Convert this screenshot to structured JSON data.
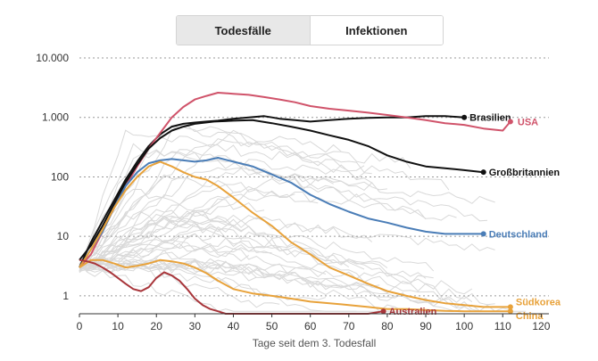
{
  "toggle": {
    "deaths_label": "Todesfälle",
    "infections_label": "Infektionen"
  },
  "chart_data": {
    "type": "line",
    "title": "",
    "xlabel": "Tage seit dem 3. Todesfall",
    "ylabel": "",
    "yscale": "log",
    "xlim": [
      0,
      122
    ],
    "ylim": [
      0.5,
      10000
    ],
    "x_ticks": [
      0,
      10,
      20,
      30,
      40,
      50,
      60,
      70,
      80,
      90,
      100,
      110,
      120
    ],
    "y_ticks": [
      {
        "value": 1,
        "label": "1"
      },
      {
        "value": 10,
        "label": "10"
      },
      {
        "value": 100,
        "label": "100"
      },
      {
        "value": 1000,
        "label": "1.000"
      },
      {
        "value": 10000,
        "label": "10.000"
      }
    ],
    "series": [
      {
        "name": "Brasilien",
        "color": "#111111",
        "x": [
          0,
          3,
          6,
          9,
          12,
          15,
          18,
          21,
          24,
          27,
          30,
          33,
          36,
          40,
          44,
          48,
          50,
          52,
          56,
          60,
          65,
          70,
          75,
          80,
          85,
          90,
          95,
          100
        ],
        "y": [
          3,
          8,
          18,
          40,
          90,
          180,
          330,
          520,
          700,
          780,
          820,
          850,
          880,
          950,
          1000,
          1050,
          1000,
          950,
          900,
          850,
          900,
          950,
          980,
          1000,
          1000,
          1050,
          1050,
          1000
        ],
        "label_at_end": true
      },
      {
        "name": "USA",
        "color": "#d0536a",
        "x": [
          0,
          3,
          6,
          9,
          12,
          15,
          18,
          21,
          24,
          27,
          30,
          33,
          36,
          40,
          44,
          48,
          52,
          56,
          60,
          65,
          70,
          75,
          80,
          85,
          90,
          95,
          100,
          105,
          110,
          112
        ],
        "y": [
          3,
          5,
          12,
          30,
          70,
          150,
          300,
          550,
          1000,
          1500,
          2000,
          2300,
          2600,
          2500,
          2400,
          2200,
          2000,
          1800,
          1550,
          1400,
          1300,
          1200,
          1100,
          1000,
          900,
          800,
          750,
          650,
          600,
          850
        ],
        "label_at_end": true
      },
      {
        "name": "Großbritannien",
        "color": "#111111",
        "x": [
          0,
          3,
          6,
          9,
          12,
          15,
          18,
          21,
          24,
          27,
          30,
          35,
          40,
          45,
          50,
          55,
          60,
          65,
          70,
          75,
          80,
          85,
          90,
          95,
          100,
          105
        ],
        "y": [
          4,
          7,
          15,
          35,
          80,
          160,
          300,
          450,
          600,
          700,
          780,
          850,
          880,
          900,
          800,
          700,
          600,
          500,
          420,
          330,
          230,
          180,
          150,
          140,
          130,
          120
        ],
        "label_at_end": true
      },
      {
        "name": "Deutschland",
        "color": "#4a7db7",
        "x": [
          0,
          3,
          6,
          9,
          12,
          15,
          18,
          21,
          24,
          27,
          30,
          33,
          36,
          40,
          45,
          50,
          55,
          60,
          65,
          70,
          75,
          80,
          85,
          90,
          95,
          100,
          105
        ],
        "y": [
          3,
          6,
          12,
          30,
          70,
          120,
          170,
          190,
          200,
          190,
          180,
          190,
          210,
          180,
          150,
          110,
          80,
          50,
          35,
          26,
          20,
          17,
          14,
          12,
          11,
          11,
          11
        ],
        "label_at_end": true
      },
      {
        "name": "Südkorea",
        "color": "#e8a23a",
        "x": [
          0,
          3,
          6,
          9,
          12,
          15,
          18,
          21,
          24,
          27,
          30,
          33,
          36,
          40,
          45,
          50,
          55,
          60,
          65,
          70,
          75,
          80,
          85,
          90,
          95,
          100,
          105,
          110,
          112
        ],
        "y": [
          3,
          6,
          13,
          30,
          60,
          100,
          150,
          180,
          150,
          120,
          100,
          90,
          70,
          45,
          25,
          15,
          8,
          5,
          3,
          2.2,
          1.6,
          1.2,
          1,
          0.85,
          0.75,
          0.7,
          0.65,
          0.65,
          0.65
        ],
        "label_at_end": true
      },
      {
        "name": "China",
        "color": "#e8a23a",
        "x": [
          0,
          3,
          6,
          9,
          12,
          15,
          18,
          21,
          24,
          27,
          30,
          33,
          36,
          40,
          45,
          50,
          55,
          60,
          65,
          70,
          75,
          80,
          85,
          90,
          95,
          100,
          105,
          110,
          112
        ],
        "y": [
          3,
          4,
          4,
          3.5,
          3,
          3.2,
          3.5,
          4,
          3.8,
          3.5,
          3,
          2.4,
          1.8,
          1.3,
          1.1,
          1,
          0.9,
          0.8,
          0.75,
          0.7,
          0.65,
          0.6,
          0.6,
          0.58,
          0.56,
          0.55,
          0.55,
          0.55,
          0.55
        ],
        "label_at_end": true
      },
      {
        "name": "Australien",
        "color": "#a8353a",
        "x": [
          0,
          2,
          4,
          6,
          8,
          10,
          12,
          14,
          16,
          18,
          20,
          22,
          24,
          26,
          28,
          30,
          32,
          34,
          36,
          38,
          40,
          45,
          50,
          55,
          60,
          65,
          70,
          75,
          79
        ],
        "y": [
          4,
          3.8,
          3.5,
          3,
          2.5,
          2,
          1.6,
          1.3,
          1.2,
          1.4,
          2,
          2.5,
          2.2,
          1.8,
          1.3,
          0.9,
          0.7,
          0.6,
          0.55,
          0.5,
          0.5,
          0.5,
          0.5,
          0.5,
          0.5,
          0.5,
          0.5,
          0.5,
          0.55
        ],
        "label_at_end": true
      }
    ]
  }
}
